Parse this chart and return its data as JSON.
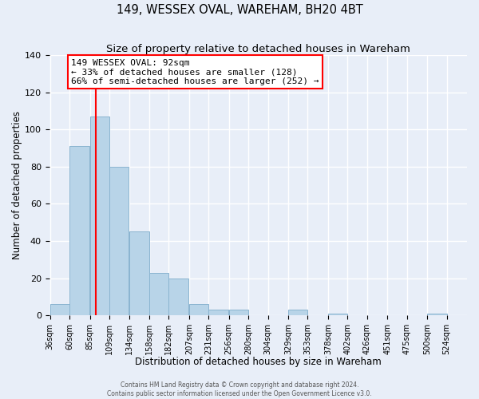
{
  "title": "149, WESSEX OVAL, WAREHAM, BH20 4BT",
  "subtitle": "Size of property relative to detached houses in Wareham",
  "xlabel": "Distribution of detached houses by size in Wareham",
  "ylabel": "Number of detached properties",
  "footer_line1": "Contains HM Land Registry data © Crown copyright and database right 2024.",
  "footer_line2": "Contains public sector information licensed under the Open Government Licence v3.0.",
  "bar_color": "#b8d4e8",
  "bar_edge_color": "#8ab4d0",
  "vline_x": 92,
  "vline_color": "red",
  "annotation_title": "149 WESSEX OVAL: 92sqm",
  "annotation_line2": "← 33% of detached houses are smaller (128)",
  "annotation_line3": "66% of semi-detached houses are larger (252) →",
  "annotation_box_color": "red",
  "bins_left_edges": [
    36,
    60,
    85,
    109,
    134,
    158,
    182,
    207,
    231,
    256,
    280,
    304,
    329,
    353,
    378,
    402,
    426,
    451,
    475,
    500,
    524
  ],
  "bin_width": 24,
  "bin_counts": [
    6,
    91,
    107,
    80,
    45,
    23,
    20,
    6,
    3,
    3,
    0,
    0,
    3,
    0,
    1,
    0,
    0,
    0,
    0,
    1,
    0
  ],
  "ylim": [
    0,
    140
  ],
  "yticks": [
    0,
    20,
    40,
    60,
    80,
    100,
    120,
    140
  ],
  "background_color": "#e8eef8",
  "plot_bg_color": "#e8eef8",
  "grid_color": "white",
  "title_fontsize": 10.5,
  "subtitle_fontsize": 9.5,
  "tick_label_fontsize": 7,
  "axis_label_fontsize": 8.5,
  "annotation_fontsize": 8
}
